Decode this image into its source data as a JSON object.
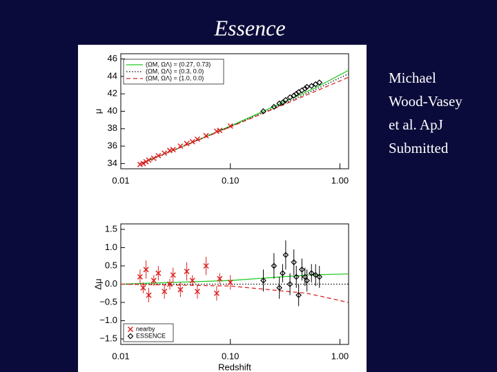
{
  "slide": {
    "title": "Essence",
    "caption": [
      "Michael",
      "Wood-Vasey",
      "et al. ApJ",
      "Submitted"
    ]
  },
  "chart_data": [
    {
      "type": "scatter",
      "ylabel": "μ",
      "xscale": "log",
      "xlim": [
        0.01,
        1.2
      ],
      "ylim": [
        33.4,
        46.6
      ],
      "xticks": [
        0.01,
        {
          "value": 0.1,
          "label": "0.10"
        },
        {
          "value": 1,
          "label": "1.00"
        }
      ],
      "yticks": [
        34,
        36,
        38,
        40,
        42,
        44,
        46
      ],
      "legend": "upper left",
      "models": [
        {
          "name": "(ΩM, ΩΛ) = (0.27, 0.73)",
          "color": "#22cc22",
          "style": "solid",
          "x": [
            0.015,
            0.03,
            0.1,
            0.3,
            0.6,
            1.2
          ],
          "values": [
            34,
            35.5,
            38.3,
            41,
            42.7,
            44.7
          ]
        },
        {
          "name": "(ΩM, ΩΛ) = (0.3, 0.0)",
          "color": "#000000",
          "style": "dotted",
          "x": [
            0.015,
            0.03,
            0.1,
            0.3,
            0.6,
            1.2
          ],
          "values": [
            34,
            35.5,
            38.25,
            40.8,
            42.5,
            44.3
          ]
        },
        {
          "name": "(ΩM, ΩΛ) = (1.0, 0.0)",
          "color": "#dd2222",
          "style": "dashed",
          "x": [
            0.015,
            0.03,
            0.1,
            0.3,
            0.6,
            1.2
          ],
          "values": [
            34,
            35.5,
            38.2,
            40.7,
            42.3,
            43.9
          ]
        }
      ],
      "series": [
        {
          "color": "#dd2222",
          "marker": "x",
          "x": [
            0.015,
            0.016,
            0.017,
            0.018,
            0.02,
            0.022,
            0.025,
            0.028,
            0.03,
            0.035,
            0.04,
            0.045,
            0.05,
            0.06,
            0.075,
            0.08,
            0.1
          ],
          "values": [
            33.9,
            34,
            34.2,
            34.4,
            34.6,
            34.9,
            35.2,
            35.5,
            35.6,
            36,
            36.3,
            36.5,
            36.8,
            37.2,
            37.7,
            37.8,
            38.3
          ]
        },
        {
          "color": "#000000",
          "marker": "diamond",
          "x": [
            0.2,
            0.25,
            0.28,
            0.3,
            0.32,
            0.35,
            0.38,
            0.4,
            0.42,
            0.45,
            0.48,
            0.5,
            0.55,
            0.6,
            0.65
          ],
          "values": [
            40,
            40.5,
            40.9,
            41,
            41.3,
            41.6,
            41.8,
            42,
            42.2,
            42.4,
            42.6,
            42.8,
            42.9,
            43.1,
            43.3
          ]
        }
      ]
    },
    {
      "type": "scatter",
      "xlabel": "Redshift",
      "ylabel": "Δμ",
      "xscale": "log",
      "xlim": [
        0.01,
        1.2
      ],
      "ylim": [
        -1.65,
        1.65
      ],
      "xticks": [
        0.01,
        {
          "value": 0.1,
          "label": "0.10"
        },
        {
          "value": 1,
          "label": "1.00"
        }
      ],
      "yticks": [
        {
          "value": 1.5,
          "label": "1.5"
        },
        {
          "value": 1,
          "label": "1.0"
        },
        {
          "value": 0.5,
          "label": "0.5"
        },
        {
          "value": 0,
          "label": "0.0"
        },
        {
          "value": -0.5,
          "label": "−0.5"
        },
        {
          "value": -1,
          "label": "−1.0"
        },
        {
          "value": -1.5,
          "label": "−1.5"
        }
      ],
      "legend": "lower left",
      "models": [
        {
          "color": "#22cc22",
          "style": "solid",
          "x": [
            0.01,
            0.1,
            0.5,
            1.2
          ],
          "values": [
            0,
            0.1,
            0.25,
            0.28
          ]
        },
        {
          "color": "#000000",
          "style": "dotted",
          "x": [
            0.01,
            1.2
          ],
          "values": [
            0,
            0
          ]
        },
        {
          "color": "#dd2222",
          "style": "dashed",
          "x": [
            0.01,
            0.1,
            0.5,
            1.2
          ],
          "values": [
            0,
            -0.05,
            -0.25,
            -0.5
          ]
        }
      ],
      "series": [
        {
          "name": "nearby",
          "color": "#dd2222",
          "marker": "x",
          "x": [
            0.015,
            0.016,
            0.017,
            0.018,
            0.02,
            0.022,
            0.025,
            0.028,
            0.03,
            0.035,
            0.04,
            0.045,
            0.05,
            0.06,
            0.075,
            0.08,
            0.1
          ],
          "values": [
            0.2,
            -0.1,
            0.4,
            -0.3,
            0.1,
            0.3,
            -0.2,
            0,
            0.25,
            -0.15,
            0.35,
            0.1,
            -0.2,
            0.5,
            -0.25,
            0.15,
            0.05
          ],
          "errors": [
            0.2,
            0.15,
            0.25,
            0.2,
            0.15,
            0.2,
            0.2,
            0.15,
            0.2,
            0.2,
            0.25,
            0.15,
            0.2,
            0.25,
            0.2,
            0.15,
            0.2
          ]
        },
        {
          "name": "ESSENCE",
          "color": "#000000",
          "marker": "diamond",
          "x": [
            0.2,
            0.25,
            0.28,
            0.3,
            0.32,
            0.35,
            0.38,
            0.4,
            0.42,
            0.45,
            0.48,
            0.5,
            0.55,
            0.6,
            0.65
          ],
          "values": [
            0.1,
            0.5,
            -0.1,
            0.3,
            0.8,
            0,
            0.6,
            0.2,
            -0.3,
            0.4,
            0.2,
            0.1,
            0.3,
            0.25,
            0.2
          ],
          "errors": [
            0.3,
            0.35,
            0.3,
            0.25,
            0.4,
            0.3,
            0.35,
            0.3,
            0.3,
            0.3,
            0.25,
            0.3,
            0.25,
            0.3,
            0.3
          ]
        }
      ]
    }
  ]
}
